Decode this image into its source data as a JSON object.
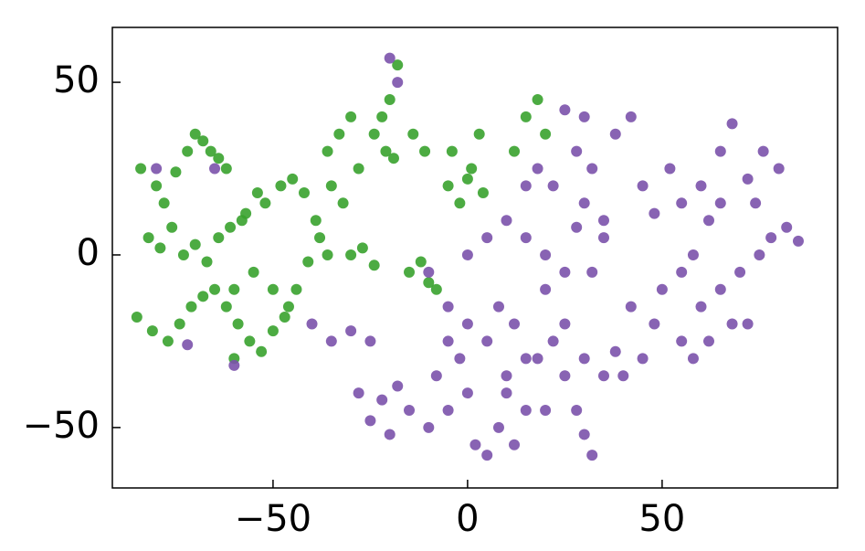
{
  "chart_data": {
    "type": "scatter",
    "xlim": [
      -91.3,
      95.1
    ],
    "ylim": [
      -67.5,
      65.9
    ],
    "xticks": [
      {
        "value": -50,
        "label": "−50"
      },
      0,
      50
    ],
    "yticks": [
      {
        "value": -50,
        "label": "−50"
      },
      0,
      50
    ],
    "series": [
      {
        "color": "#38a22e",
        "x": [
          -84,
          -80,
          -78,
          -75,
          -72,
          -70,
          -68,
          -66,
          -64,
          -62,
          -82,
          -79,
          -76,
          -73,
          -70,
          -67,
          -64,
          -61,
          -58,
          -85,
          -81,
          -77,
          -74,
          -71,
          -68,
          -65,
          -62,
          -59,
          -56,
          -53,
          -50,
          -47,
          -44,
          -41,
          -38,
          -52,
          -48,
          -45,
          -42,
          -39,
          -36,
          -55,
          -50,
          -46,
          -60,
          -57,
          -54,
          -36,
          -33,
          -30,
          -28,
          -35,
          -32,
          -22,
          -20,
          -18,
          -24,
          -21,
          -19,
          -30,
          -27,
          -24,
          -15,
          -12,
          -10,
          -8,
          -14,
          -11,
          -5,
          -2,
          1,
          3,
          -4,
          0,
          4,
          12,
          15,
          18,
          20,
          -60
        ],
        "values": [
          25,
          20,
          15,
          24,
          30,
          35,
          33,
          30,
          28,
          25,
          5,
          2,
          8,
          0,
          3,
          -2,
          5,
          8,
          10,
          -18,
          -22,
          -25,
          -20,
          -15,
          -12,
          -10,
          -15,
          -20,
          -25,
          -28,
          -22,
          -18,
          -10,
          -2,
          5,
          15,
          20,
          22,
          18,
          10,
          0,
          -5,
          -10,
          -15,
          -10,
          12,
          18,
          30,
          35,
          40,
          25,
          20,
          15,
          40,
          45,
          55,
          35,
          30,
          28,
          0,
          2,
          -3,
          -5,
          -2,
          -8,
          -10,
          35,
          30,
          20,
          15,
          25,
          35,
          30,
          22,
          18,
          30,
          40,
          45,
          35,
          -30
        ]
      },
      {
        "color": "#7b52ab",
        "x": [
          -20,
          -18,
          -80,
          -65,
          -60,
          -72,
          -35,
          -30,
          -25,
          -40,
          -28,
          -25,
          -22,
          -15,
          -10,
          -5,
          -20,
          -18,
          -8,
          0,
          2,
          5,
          8,
          12,
          15,
          10,
          5,
          0,
          -5,
          -10,
          -5,
          8,
          12,
          18,
          22,
          25,
          28,
          30,
          32,
          20,
          15,
          25,
          30,
          35,
          38,
          40,
          20,
          25,
          15,
          10,
          5,
          0,
          20,
          28,
          30,
          35,
          32,
          22,
          18,
          28,
          32,
          38,
          42,
          30,
          25,
          15,
          45,
          48,
          52,
          55,
          50,
          55,
          58,
          60,
          62,
          55,
          48,
          42,
          65,
          68,
          72,
          70,
          75,
          78,
          62,
          60,
          65,
          68,
          72,
          76,
          80,
          74,
          82,
          85,
          65,
          58,
          45,
          -2,
          10,
          35
        ],
        "values": [
          57,
          50,
          25,
          25,
          -32,
          -26,
          -25,
          -22,
          -25,
          -20,
          -40,
          -48,
          -42,
          -45,
          -50,
          -45,
          -52,
          -38,
          -35,
          -40,
          -55,
          -58,
          -50,
          -55,
          -45,
          -35,
          -25,
          -20,
          -15,
          -5,
          -25,
          -15,
          -20,
          -30,
          -25,
          -35,
          -45,
          -52,
          -58,
          -45,
          -30,
          -20,
          -30,
          -35,
          -28,
          -35,
          -10,
          -5,
          5,
          10,
          5,
          0,
          0,
          8,
          15,
          5,
          -5,
          20,
          25,
          30,
          25,
          35,
          40,
          40,
          42,
          20,
          20,
          12,
          25,
          15,
          -10,
          -5,
          0,
          -15,
          -25,
          -25,
          -20,
          -15,
          -10,
          -20,
          -20,
          -5,
          0,
          5,
          10,
          20,
          30,
          38,
          22,
          30,
          25,
          15,
          8,
          4,
          15,
          -30,
          -30,
          -30,
          -40,
          10
        ]
      }
    ]
  }
}
